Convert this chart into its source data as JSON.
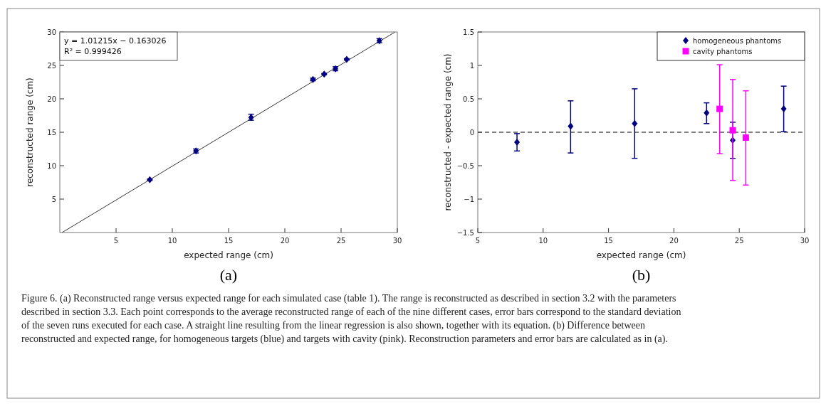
{
  "chart_data": [
    {
      "type": "scatter",
      "xlabel": "expected range (cm)",
      "ylabel": "reconstructed range (cm)",
      "xlim": [
        0,
        30
      ],
      "ylim": [
        0,
        30
      ],
      "xticks": [
        5,
        10,
        15,
        20,
        25,
        30
      ],
      "yticks": [
        5,
        10,
        15,
        20,
        25,
        30
      ],
      "grid": false,
      "legend": false,
      "series": [
        {
          "type": "line",
          "color": "#333333",
          "x": [
            0.2,
            29.8
          ],
          "values": [
            0,
            30
          ],
          "marker": "none",
          "line_style": "solid"
        },
        {
          "type": "scatter",
          "color": "#000080",
          "marker": "diamond",
          "x": [
            8,
            12.1,
            17,
            22.5,
            23.5,
            24.5,
            25.5,
            28.4
          ],
          "values": [
            7.9,
            12.2,
            17.2,
            22.9,
            23.7,
            24.5,
            25.9,
            28.7
          ],
          "errors": [
            [
              7.8,
              8.0
            ],
            [
              11.9,
              12.5
            ],
            [
              16.8,
              17.7
            ],
            [
              22.7,
              23.1
            ],
            [
              23.6,
              23.8
            ],
            [
              24.2,
              24.8
            ],
            [
              25.8,
              26.0
            ],
            [
              28.4,
              29.0
            ]
          ]
        }
      ],
      "annotations": [
        "y = 1.01215x − 0.163026",
        "R² = 0.999426",
        "(a)"
      ]
    },
    {
      "type": "scatter",
      "xlabel": "expected range (cm)",
      "ylabel": "reconstructed - expected range (cm)",
      "xlim": [
        5,
        30
      ],
      "ylim": [
        -1.5,
        1.5
      ],
      "xticks": [
        5,
        10,
        15,
        20,
        25,
        30
      ],
      "yticks": [
        {
          "value": -1.5,
          "label": "−1.5"
        },
        {
          "value": -1,
          "label": "−1"
        },
        {
          "value": -0.5,
          "label": "−0.5"
        },
        0,
        0.5,
        1,
        1.5
      ],
      "grid": false,
      "legend": "top right",
      "ref_lines": [
        {
          "axis": "y",
          "value": 0,
          "color": "#555555",
          "line_style": "dashed"
        }
      ],
      "series": [
        {
          "name": "homogeneous phantoms",
          "color": "#000080",
          "marker": "diamond",
          "x": [
            8,
            12.1,
            17,
            22.5,
            24.5,
            28.4
          ],
          "values": [
            -0.15,
            0.09,
            0.13,
            0.29,
            -0.12,
            0.35
          ],
          "errors": [
            [
              -0.28,
              -0.02
            ],
            [
              -0.31,
              0.47
            ],
            [
              -0.39,
              0.65
            ],
            [
              0.13,
              0.44
            ],
            [
              -0.39,
              0.15
            ],
            [
              0.01,
              0.69
            ]
          ]
        },
        {
          "name": "cavity phantoms",
          "color": "#ff00ff",
          "marker": "square",
          "x": [
            23.5,
            24.5,
            25.5
          ],
          "values": [
            0.35,
            0.03,
            -0.08
          ],
          "errors": [
            [
              -0.32,
              1.01
            ],
            [
              -0.72,
              0.79
            ],
            [
              -0.79,
              0.62
            ]
          ]
        }
      ],
      "annotations": [
        "(b)",
        "Figure 6. (a) Reconstructed range versus expected range for each simulated case (table 1). The range is reconstructed as described in section 3.2 with the parameters described in section 3.3. Each point corresponds to the average reconstructed range of each of the nine different cases, error bars correspond to the standard deviation of the seven runs executed for each case. A straight line resulting from the linear regression is also shown, together with its equation. (b) Difference between reconstructed and expected range, for homogeneous targets (blue) and targets with cavity (pink). Reconstruction parameters and error bars are calculated as in (a)."
      ]
    }
  ]
}
